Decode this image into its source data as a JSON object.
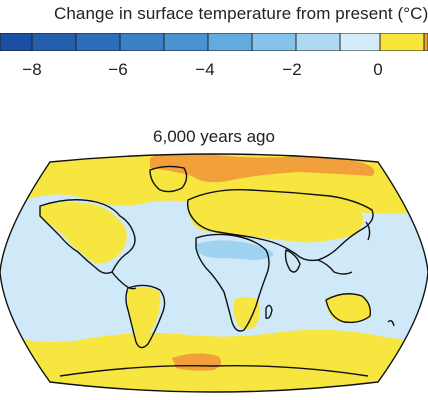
{
  "colorbar": {
    "title": "Change in surface temperature from present (°C)",
    "ticks": [
      "−8",
      "−6",
      "−4",
      "−2",
      "0"
    ],
    "colors": [
      "#1b4fa3",
      "#245fae",
      "#2c6eba",
      "#3a80c6",
      "#4a93d2",
      "#63aade",
      "#86c3ea",
      "#aed9f3",
      "#d3ecfa",
      "#f8e53a",
      "#f2a23c"
    ]
  },
  "map": {
    "title": "6,000 years ago",
    "colors": {
      "ocean_cool": "#cfe9f8",
      "warm_land": "#f8e640",
      "strong_warm": "#f2a03c",
      "cool_band": "#9fd3f1",
      "coast": "#111111"
    }
  }
}
